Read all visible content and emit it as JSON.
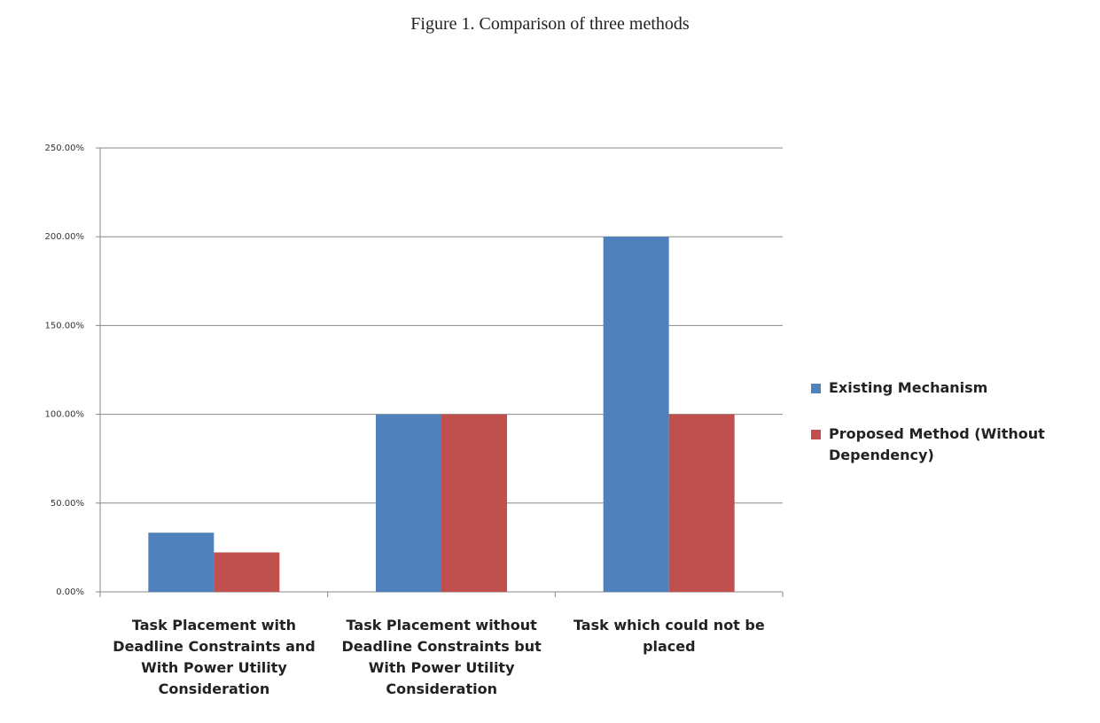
{
  "chart_data": {
    "type": "bar",
    "title": "Figure 1. Comparison of three methods",
    "categories": [
      "Task Placement with Deadline Constraints and With Power Utility Consideration",
      "Task Placement without Deadline Constraints but With Power Utility Consideration",
      "Task which could not be placed"
    ],
    "series": [
      {
        "name": "Existing Mechanism",
        "color": "#4f81bd",
        "values": [
          33.33,
          100,
          200
        ]
      },
      {
        "name": "Proposed Method (Without Dependency)",
        "color": "#c0504d",
        "values": [
          22.22,
          100,
          100
        ]
      }
    ],
    "ylim": [
      0,
      250
    ],
    "yticks": [
      {
        "value": 0,
        "label": "0.00%"
      },
      {
        "value": 50,
        "label": "50.00%"
      },
      {
        "value": 100,
        "label": "100.00%"
      },
      {
        "value": 150,
        "label": "150.00%"
      },
      {
        "value": 200,
        "label": "200.00%"
      },
      {
        "value": 250,
        "label": "250.00%"
      }
    ],
    "grid": true,
    "legend": "right"
  }
}
